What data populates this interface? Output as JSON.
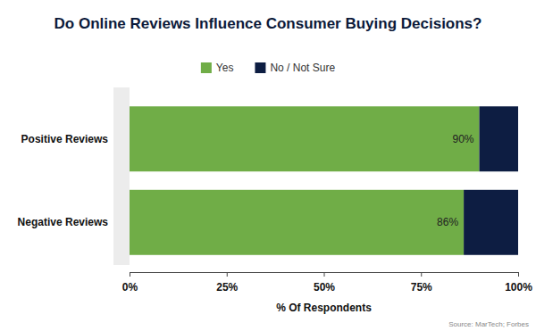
{
  "chart_data": {
    "type": "bar",
    "title": "Do Online Reviews Influence Consumer Buying Decisions?",
    "x_label": "% Of Respondents",
    "source": "Source: MarTech; Forbes",
    "orientation": "horizontal",
    "stacked": true,
    "legend": "top",
    "grid": false,
    "categories": [
      "Positive Reviews",
      "Negative Reviews"
    ],
    "series": [
      {
        "name": "Yes",
        "color": "#70ad47",
        "values": [
          90,
          86
        ],
        "data_labels": true,
        "value_labels": [
          "90%",
          "86%"
        ]
      },
      {
        "name": "No / Not Sure",
        "color": "#0d1d42",
        "values": [
          10,
          14
        ]
      }
    ],
    "xlim": [
      0,
      100
    ],
    "xticks": [
      {
        "value": 0,
        "label": "0%"
      },
      {
        "value": 25,
        "label": "25%"
      },
      {
        "value": 50,
        "label": "50%"
      },
      {
        "value": 75,
        "label": "75%"
      },
      {
        "value": 100,
        "label": "100%"
      }
    ]
  }
}
